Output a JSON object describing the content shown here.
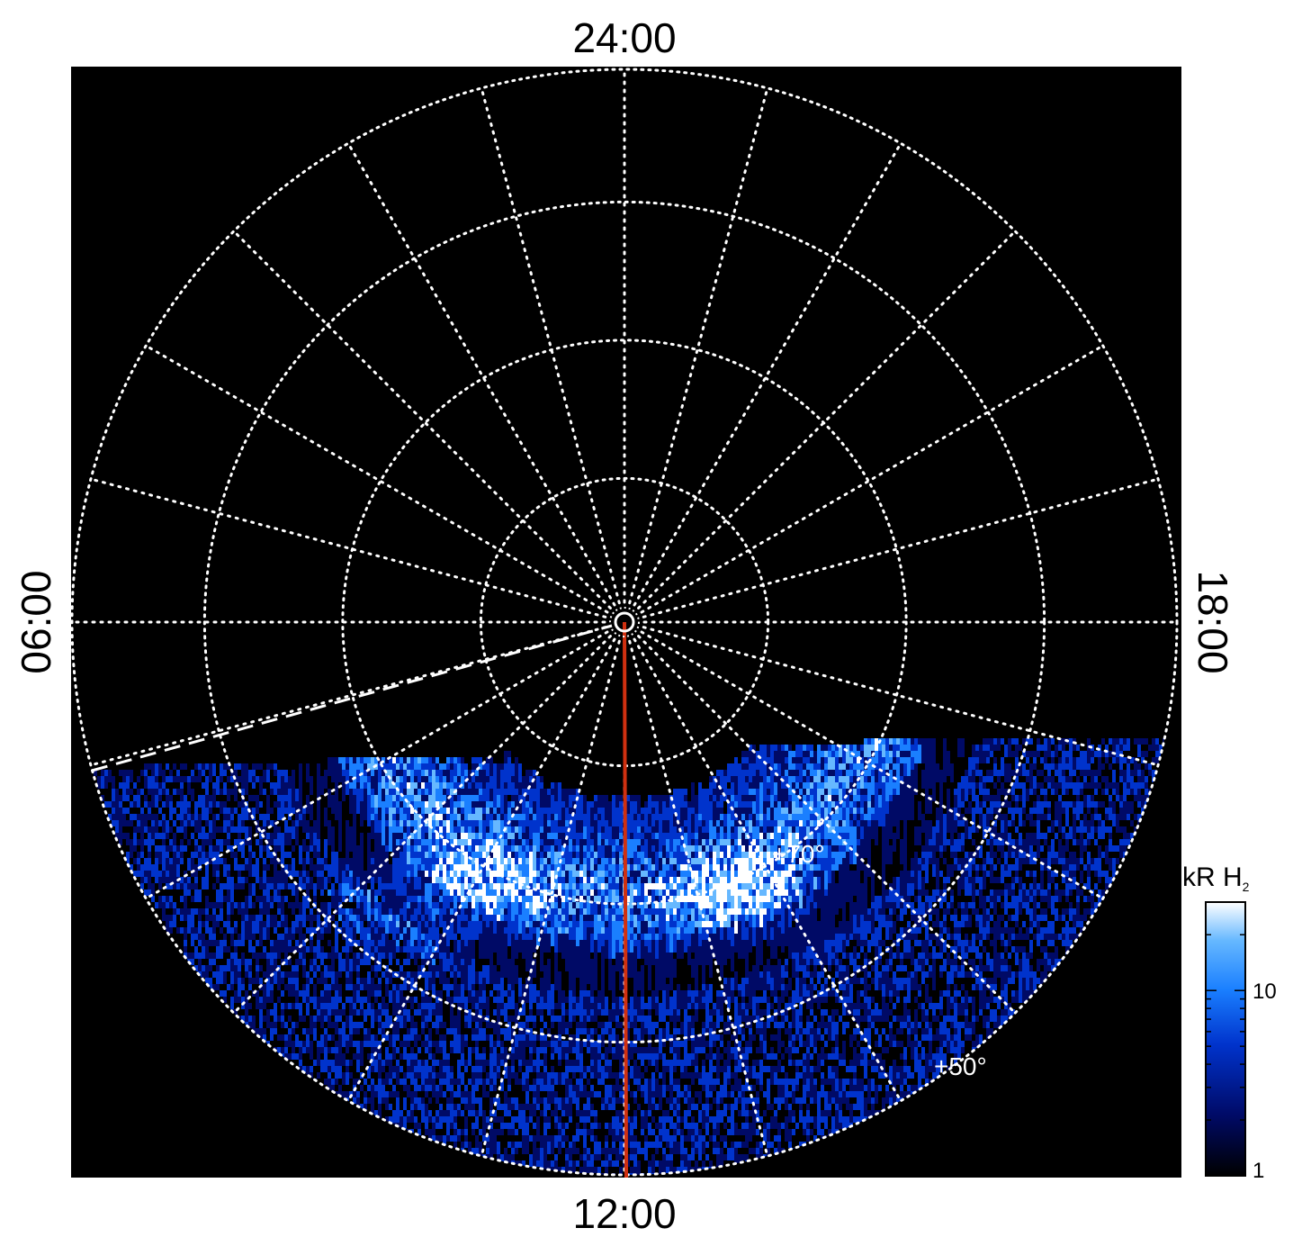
{
  "local_time_labels": {
    "top": "24:00",
    "bottom": "12:00",
    "left": "06:00",
    "right": "18:00"
  },
  "latitude_labels": {
    "inner": "+70°",
    "outer": "+50°"
  },
  "colorbar": {
    "title_main": "kR H",
    "title_sub": "2",
    "scale": "log",
    "range": [
      1,
      30
    ],
    "ticks": [
      "10",
      "1"
    ],
    "colors": [
      "#000000",
      "#000a66",
      "#0033cc",
      "#1a7fff",
      "#66b8ff",
      "#ffffff"
    ]
  },
  "grid": {
    "style": "dotted",
    "color": "#ffffff",
    "meridian_spacing_hours": 1
  },
  "markers": {
    "noon_meridian_color": "#d03010",
    "dashed_boundary_color": "#ffffff"
  }
}
